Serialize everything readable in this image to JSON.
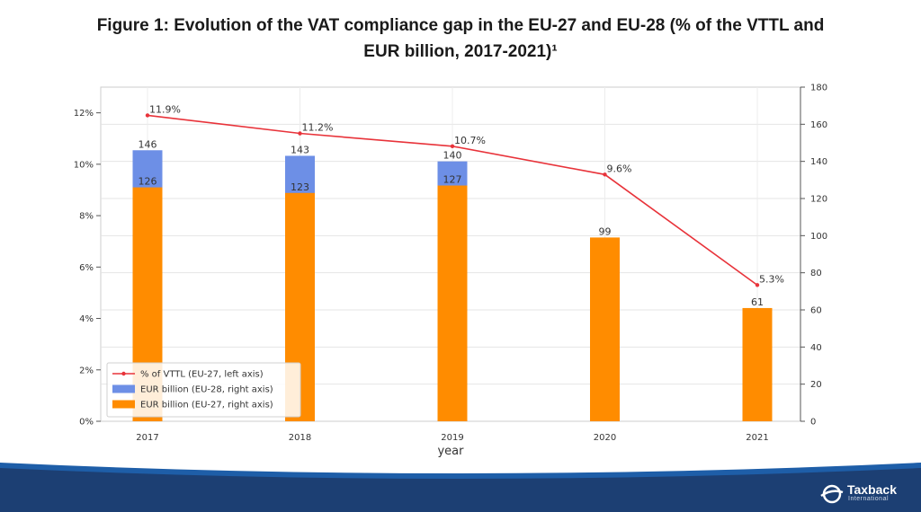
{
  "title": {
    "line1": "Figure 1: Evolution of the VAT compliance gap in the EU-27 and EU-28 (% of the VTTL and",
    "line2": "EUR billion, 2017-2021)¹"
  },
  "chart_data": {
    "type": "bar",
    "categories": [
      "2017",
      "2018",
      "2019",
      "2020",
      "2021"
    ],
    "series": [
      {
        "name": "EUR billion (EU-27, right axis)",
        "type": "bar",
        "axis": "right",
        "color": "#ff8c00",
        "values": [
          126,
          123,
          127,
          99,
          61
        ]
      },
      {
        "name": "EUR billion (EU-28, right axis)",
        "type": "bar",
        "axis": "right",
        "color": "#6d8fe6",
        "values": [
          146,
          143,
          140,
          null,
          null
        ]
      },
      {
        "name": "% of VTTL (EU-27, left axis)",
        "type": "line",
        "axis": "left",
        "color": "#e8333a",
        "values": [
          11.9,
          11.2,
          10.7,
          9.6,
          5.3
        ],
        "labels": [
          "11.9%",
          "11.2%",
          "10.7%",
          "9.6%",
          "5.3%"
        ]
      }
    ],
    "xlabel": "year",
    "left_axis": {
      "ylim": [
        0,
        13
      ],
      "ticks": [
        0,
        2,
        4,
        6,
        8,
        10,
        12
      ],
      "tick_labels": [
        "0%",
        "2%",
        "4%",
        "6%",
        "8%",
        "10%",
        "12%"
      ]
    },
    "right_axis": {
      "ylim": [
        0,
        180
      ],
      "ticks": [
        0,
        20,
        40,
        60,
        80,
        100,
        120,
        140,
        160,
        180
      ],
      "tick_labels": [
        "0",
        "20",
        "40",
        "60",
        "80",
        "100",
        "120",
        "140",
        "160",
        "180"
      ]
    },
    "grid": true,
    "legend_position": "lower-left",
    "legend_order": [
      2,
      1,
      0
    ]
  },
  "logo": {
    "name": "Taxback",
    "sub": "International"
  },
  "colors": {
    "footer_dark": "#1c3f73",
    "footer_light": "#1e5ea8"
  }
}
